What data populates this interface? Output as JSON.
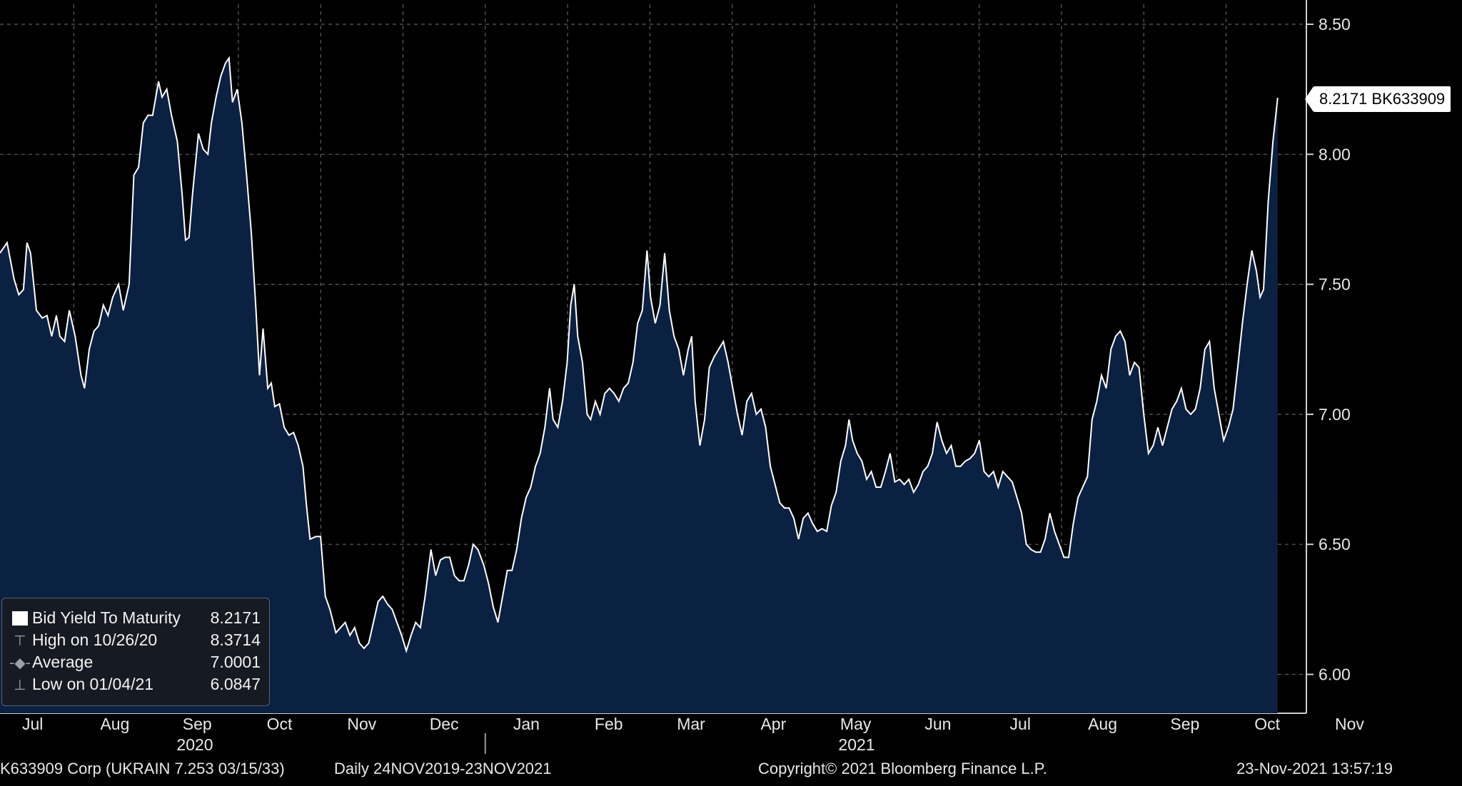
{
  "chart_data": {
    "type": "area",
    "title": "Bid Yield To Maturity",
    "ylim": [
      5.9,
      8.58
    ],
    "yticks": [
      6.0,
      6.5,
      7.0,
      7.5,
      8.0,
      8.5
    ],
    "ytick_labels": [
      "6.00",
      "6.50",
      "7.00",
      "7.50",
      "8.00",
      "8.50"
    ],
    "x_month_labels": [
      "Jul",
      "Aug",
      "Sep",
      "Oct",
      "Nov",
      "Dec",
      "Jan",
      "Feb",
      "Mar",
      "Apr",
      "May",
      "Jun",
      "Jul",
      "Aug",
      "Sep",
      "Oct",
      "Nov"
    ],
    "year_labels": [
      "2020",
      "2021"
    ],
    "grid": true,
    "series": [
      {
        "name": "Bid Yield To Maturity",
        "ticker": "BK633909",
        "last_value": "8.2171",
        "points": [
          [
            0.0,
            7.62
          ],
          [
            0.3,
            7.66
          ],
          [
            0.6,
            7.52
          ],
          [
            0.8,
            7.46
          ],
          [
            1.0,
            7.48
          ],
          [
            1.15,
            7.66
          ],
          [
            1.3,
            7.62
          ],
          [
            1.55,
            7.4
          ],
          [
            1.8,
            7.37
          ],
          [
            2.0,
            7.38
          ],
          [
            2.2,
            7.3
          ],
          [
            2.4,
            7.38
          ],
          [
            2.55,
            7.3
          ],
          [
            2.75,
            7.28
          ],
          [
            2.95,
            7.4
          ],
          [
            3.2,
            7.3
          ],
          [
            3.45,
            7.15
          ],
          [
            3.6,
            7.1
          ],
          [
            3.8,
            7.25
          ],
          [
            4.0,
            7.32
          ],
          [
            4.2,
            7.34
          ],
          [
            4.4,
            7.42
          ],
          [
            4.6,
            7.38
          ],
          [
            4.8,
            7.45
          ],
          [
            5.05,
            7.5
          ],
          [
            5.25,
            7.4
          ],
          [
            5.5,
            7.5
          ],
          [
            5.7,
            7.92
          ],
          [
            5.9,
            7.95
          ],
          [
            6.1,
            8.12
          ],
          [
            6.3,
            8.15
          ],
          [
            6.5,
            8.15
          ],
          [
            6.75,
            8.28
          ],
          [
            6.9,
            8.22
          ],
          [
            7.1,
            8.25
          ],
          [
            7.3,
            8.15
          ],
          [
            7.55,
            8.05
          ],
          [
            7.75,
            7.85
          ],
          [
            7.9,
            7.67
          ],
          [
            8.05,
            7.68
          ],
          [
            8.2,
            7.85
          ],
          [
            8.45,
            8.08
          ],
          [
            8.65,
            8.02
          ],
          [
            8.85,
            8.0
          ],
          [
            9.0,
            8.12
          ],
          [
            9.2,
            8.22
          ],
          [
            9.4,
            8.3
          ],
          [
            9.6,
            8.35
          ],
          [
            9.75,
            8.37
          ],
          [
            9.9,
            8.2
          ],
          [
            10.1,
            8.25
          ],
          [
            10.3,
            8.12
          ],
          [
            10.5,
            7.92
          ],
          [
            10.7,
            7.7
          ],
          [
            10.9,
            7.4
          ],
          [
            11.05,
            7.15
          ],
          [
            11.2,
            7.33
          ],
          [
            11.4,
            7.1
          ],
          [
            11.55,
            7.12
          ],
          [
            11.7,
            7.03
          ],
          [
            11.9,
            7.04
          ],
          [
            12.1,
            6.95
          ],
          [
            12.3,
            6.92
          ],
          [
            12.5,
            6.93
          ],
          [
            12.7,
            6.88
          ],
          [
            12.9,
            6.8
          ],
          [
            13.05,
            6.65
          ],
          [
            13.2,
            6.52
          ],
          [
            13.45,
            6.53
          ],
          [
            13.65,
            6.53
          ],
          [
            13.85,
            6.3
          ],
          [
            14.05,
            6.25
          ],
          [
            14.3,
            6.16
          ],
          [
            14.5,
            6.18
          ],
          [
            14.7,
            6.2
          ],
          [
            14.9,
            6.15
          ],
          [
            15.1,
            6.18
          ],
          [
            15.3,
            6.12
          ],
          [
            15.5,
            6.1
          ],
          [
            15.7,
            6.12
          ],
          [
            15.9,
            6.2
          ],
          [
            16.1,
            6.28
          ],
          [
            16.3,
            6.3
          ],
          [
            16.5,
            6.27
          ],
          [
            16.7,
            6.25
          ],
          [
            16.9,
            6.2
          ],
          [
            17.1,
            6.15
          ],
          [
            17.3,
            6.09
          ],
          [
            17.5,
            6.15
          ],
          [
            17.7,
            6.2
          ],
          [
            17.9,
            6.18
          ],
          [
            18.1,
            6.3
          ],
          [
            18.35,
            6.48
          ],
          [
            18.55,
            6.38
          ],
          [
            18.75,
            6.44
          ],
          [
            18.95,
            6.45
          ],
          [
            19.15,
            6.45
          ],
          [
            19.35,
            6.38
          ],
          [
            19.55,
            6.36
          ],
          [
            19.75,
            6.36
          ],
          [
            19.95,
            6.42
          ],
          [
            20.15,
            6.5
          ],
          [
            20.35,
            6.48
          ],
          [
            20.6,
            6.42
          ],
          [
            20.8,
            6.35
          ],
          [
            21.0,
            6.26
          ],
          [
            21.2,
            6.2
          ],
          [
            21.4,
            6.3
          ],
          [
            21.6,
            6.4
          ],
          [
            21.8,
            6.4
          ],
          [
            22.0,
            6.48
          ],
          [
            22.2,
            6.6
          ],
          [
            22.4,
            6.68
          ],
          [
            22.6,
            6.72
          ],
          [
            22.8,
            6.8
          ],
          [
            23.0,
            6.85
          ],
          [
            23.2,
            6.95
          ],
          [
            23.4,
            7.1
          ],
          [
            23.55,
            6.98
          ],
          [
            23.75,
            6.95
          ],
          [
            23.95,
            7.05
          ],
          [
            24.15,
            7.2
          ],
          [
            24.3,
            7.42
          ],
          [
            24.45,
            7.5
          ],
          [
            24.6,
            7.3
          ],
          [
            24.8,
            7.2
          ],
          [
            25.0,
            7.0
          ],
          [
            25.15,
            6.98
          ],
          [
            25.35,
            7.05
          ],
          [
            25.55,
            7.0
          ],
          [
            25.75,
            7.08
          ],
          [
            25.95,
            7.1
          ],
          [
            26.15,
            7.08
          ],
          [
            26.35,
            7.05
          ],
          [
            26.55,
            7.1
          ],
          [
            26.75,
            7.12
          ],
          [
            26.95,
            7.2
          ],
          [
            27.15,
            7.35
          ],
          [
            27.35,
            7.4
          ],
          [
            27.55,
            7.63
          ],
          [
            27.7,
            7.45
          ],
          [
            27.9,
            7.35
          ],
          [
            28.1,
            7.42
          ],
          [
            28.3,
            7.62
          ],
          [
            28.5,
            7.4
          ],
          [
            28.7,
            7.3
          ],
          [
            28.9,
            7.25
          ],
          [
            29.1,
            7.15
          ],
          [
            29.3,
            7.25
          ],
          [
            29.45,
            7.3
          ],
          [
            29.6,
            7.05
          ],
          [
            29.8,
            6.88
          ],
          [
            30.0,
            6.98
          ],
          [
            30.2,
            7.18
          ],
          [
            30.4,
            7.22
          ],
          [
            30.6,
            7.25
          ],
          [
            30.8,
            7.28
          ],
          [
            31.0,
            7.2
          ],
          [
            31.2,
            7.1
          ],
          [
            31.4,
            7.0
          ],
          [
            31.6,
            6.92
          ],
          [
            31.8,
            7.05
          ],
          [
            32.0,
            7.08
          ],
          [
            32.2,
            7.0
          ],
          [
            32.4,
            7.02
          ],
          [
            32.6,
            6.95
          ],
          [
            32.8,
            6.8
          ],
          [
            33.0,
            6.73
          ],
          [
            33.2,
            6.66
          ],
          [
            33.4,
            6.64
          ],
          [
            33.6,
            6.64
          ],
          [
            33.8,
            6.6
          ],
          [
            34.0,
            6.52
          ],
          [
            34.2,
            6.6
          ],
          [
            34.4,
            6.62
          ],
          [
            34.6,
            6.58
          ],
          [
            34.8,
            6.55
          ],
          [
            35.0,
            6.56
          ],
          [
            35.2,
            6.55
          ],
          [
            35.4,
            6.65
          ],
          [
            35.6,
            6.7
          ],
          [
            35.8,
            6.82
          ],
          [
            36.0,
            6.88
          ],
          [
            36.15,
            6.98
          ],
          [
            36.3,
            6.9
          ],
          [
            36.5,
            6.85
          ],
          [
            36.7,
            6.82
          ],
          [
            36.9,
            6.75
          ],
          [
            37.1,
            6.78
          ],
          [
            37.3,
            6.72
          ],
          [
            37.5,
            6.72
          ],
          [
            37.7,
            6.78
          ],
          [
            37.9,
            6.85
          ],
          [
            38.1,
            6.74
          ],
          [
            38.3,
            6.75
          ],
          [
            38.5,
            6.73
          ],
          [
            38.7,
            6.75
          ],
          [
            38.9,
            6.7
          ],
          [
            39.1,
            6.73
          ],
          [
            39.3,
            6.78
          ],
          [
            39.5,
            6.8
          ],
          [
            39.7,
            6.85
          ],
          [
            39.9,
            6.97
          ],
          [
            40.1,
            6.9
          ],
          [
            40.3,
            6.85
          ],
          [
            40.5,
            6.88
          ],
          [
            40.7,
            6.8
          ],
          [
            40.9,
            6.8
          ],
          [
            41.1,
            6.82
          ],
          [
            41.3,
            6.83
          ],
          [
            41.5,
            6.85
          ],
          [
            41.7,
            6.9
          ],
          [
            41.9,
            6.78
          ],
          [
            42.1,
            6.76
          ],
          [
            42.3,
            6.78
          ],
          [
            42.5,
            6.72
          ],
          [
            42.7,
            6.78
          ],
          [
            42.9,
            6.76
          ],
          [
            43.1,
            6.74
          ],
          [
            43.3,
            6.68
          ],
          [
            43.5,
            6.62
          ],
          [
            43.7,
            6.5
          ],
          [
            43.9,
            6.48
          ],
          [
            44.1,
            6.47
          ],
          [
            44.3,
            6.47
          ],
          [
            44.5,
            6.52
          ],
          [
            44.7,
            6.62
          ],
          [
            44.9,
            6.55
          ],
          [
            45.1,
            6.5
          ],
          [
            45.3,
            6.45
          ],
          [
            45.5,
            6.45
          ],
          [
            45.7,
            6.58
          ],
          [
            45.9,
            6.68
          ],
          [
            46.1,
            6.72
          ],
          [
            46.3,
            6.76
          ],
          [
            46.5,
            6.98
          ],
          [
            46.7,
            7.05
          ],
          [
            46.9,
            7.15
          ],
          [
            47.1,
            7.1
          ],
          [
            47.3,
            7.25
          ],
          [
            47.5,
            7.3
          ],
          [
            47.7,
            7.32
          ],
          [
            47.9,
            7.28
          ],
          [
            48.1,
            7.15
          ],
          [
            48.3,
            7.2
          ],
          [
            48.5,
            7.18
          ],
          [
            48.7,
            7.0
          ],
          [
            48.9,
            6.85
          ],
          [
            49.1,
            6.88
          ],
          [
            49.3,
            6.95
          ],
          [
            49.5,
            6.88
          ],
          [
            49.7,
            6.95
          ],
          [
            49.9,
            7.02
          ],
          [
            50.1,
            7.05
          ],
          [
            50.3,
            7.1
          ],
          [
            50.5,
            7.02
          ],
          [
            50.7,
            7.0
          ],
          [
            50.9,
            7.02
          ],
          [
            51.1,
            7.1
          ],
          [
            51.3,
            7.25
          ],
          [
            51.5,
            7.28
          ],
          [
            51.7,
            7.1
          ],
          [
            51.9,
            7.0
          ],
          [
            52.1,
            6.9
          ],
          [
            52.3,
            6.95
          ],
          [
            52.5,
            7.02
          ],
          [
            52.7,
            7.18
          ],
          [
            52.9,
            7.35
          ],
          [
            53.1,
            7.5
          ],
          [
            53.3,
            7.63
          ],
          [
            53.5,
            7.55
          ],
          [
            53.65,
            7.45
          ],
          [
            53.8,
            7.48
          ],
          [
            54.0,
            7.82
          ],
          [
            54.2,
            8.05
          ],
          [
            54.4,
            8.2171
          ]
        ]
      }
    ],
    "legend": [
      {
        "marker": "swatch",
        "label": "Bid Yield To Maturity",
        "value": "8.2171"
      },
      {
        "marker": "high",
        "label": "High on 10/26/20",
        "value": "8.3714"
      },
      {
        "marker": "avg",
        "label": "Average",
        "value": "7.0001"
      },
      {
        "marker": "low",
        "label": "Low on 01/04/21",
        "value": "6.0847"
      }
    ],
    "last_label": "8.2171 BK633909",
    "colors": {
      "area_fill": "#0b2142",
      "line": "#ffffff",
      "grid": "#5f5f5f",
      "background": "#000000"
    }
  },
  "footer": {
    "security": "K633909 Corp (UKRAIN 7.253 03/15/33)",
    "range": "Daily 24NOV2019-23NOV2021",
    "copyright": "Copyright© 2021 Bloomberg Finance L.P.",
    "timestamp": "23-Nov-2021 13:57:19"
  }
}
